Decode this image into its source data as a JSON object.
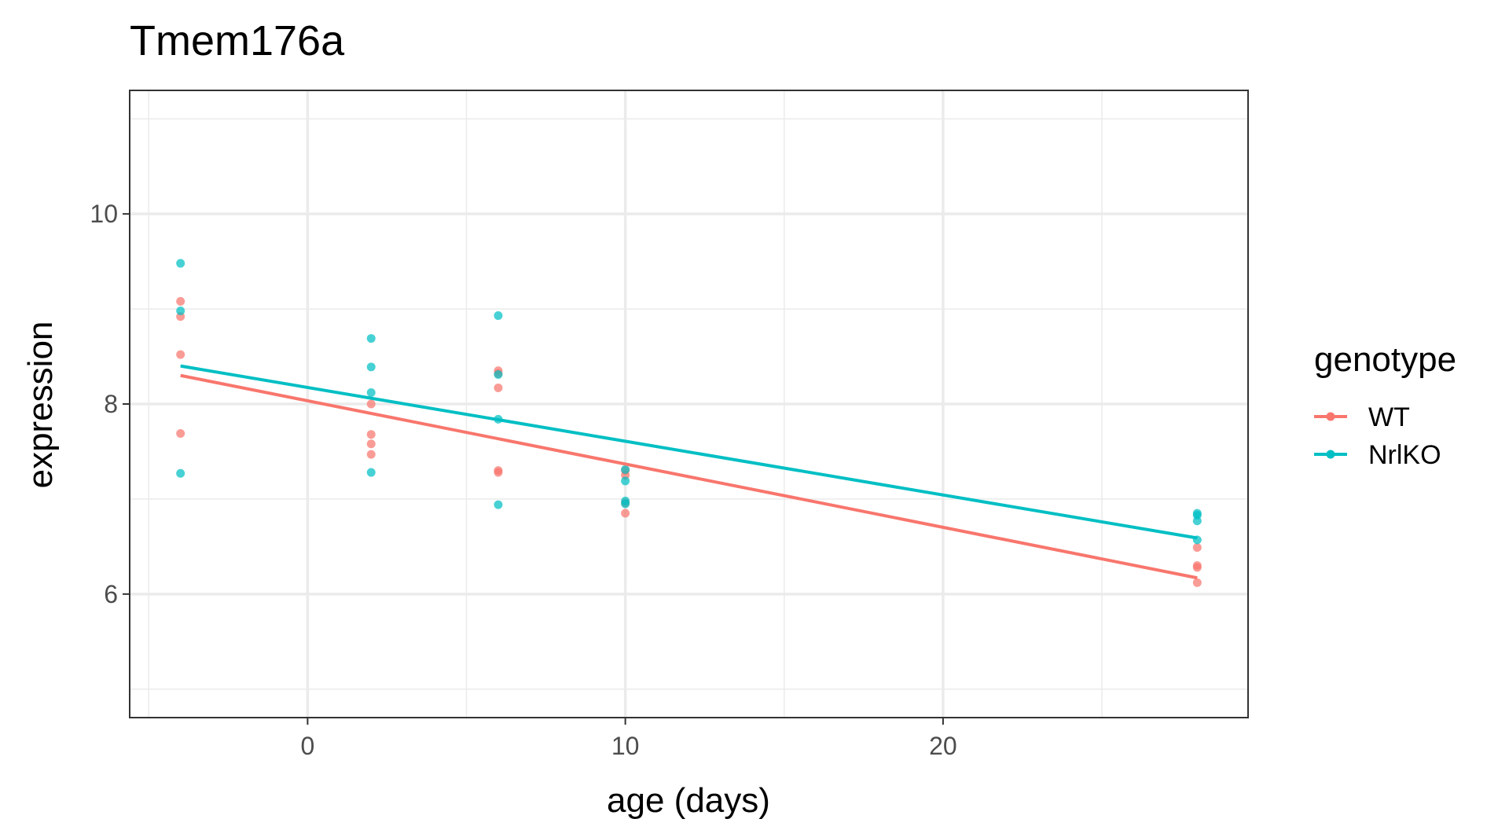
{
  "chart_data": {
    "type": "scatter",
    "title": "Tmem176a",
    "xlabel": "age (days)",
    "ylabel": "expression",
    "xlim": [
      -5.6,
      29.6
    ],
    "ylim": [
      4.7,
      11.3
    ],
    "x_ticks": [
      0,
      10,
      20
    ],
    "y_ticks": [
      6,
      8,
      10
    ],
    "x_minor": [
      -5,
      5,
      15,
      25
    ],
    "y_minor": [
      5,
      7,
      9,
      11
    ],
    "grid": true,
    "legend": {
      "title": "genotype",
      "position": "right"
    },
    "series": [
      {
        "name": "WT",
        "color": "#F8766D",
        "points": [
          [
            -4,
            9.08
          ],
          [
            -4,
            8.92
          ],
          [
            -4,
            8.52
          ],
          [
            -4,
            7.69
          ],
          [
            2,
            8.0
          ],
          [
            2,
            7.68
          ],
          [
            2,
            7.58
          ],
          [
            2,
            7.47
          ],
          [
            6,
            8.35
          ],
          [
            6,
            8.32
          ],
          [
            6,
            8.17
          ],
          [
            6,
            7.3
          ],
          [
            6,
            7.28
          ],
          [
            10,
            7.3
          ],
          [
            10,
            7.25
          ],
          [
            10,
            6.96
          ],
          [
            10,
            6.85
          ],
          [
            28,
            6.49
          ],
          [
            28,
            6.3
          ],
          [
            28,
            6.28
          ],
          [
            28,
            6.12
          ]
        ],
        "fit": [
          [
            -4,
            8.3
          ],
          [
            28,
            6.17
          ]
        ]
      },
      {
        "name": "NrlKO",
        "color": "#00BFC4",
        "points": [
          [
            -4,
            9.48
          ],
          [
            -4,
            8.98
          ],
          [
            -4,
            7.27
          ],
          [
            2,
            8.69
          ],
          [
            2,
            8.39
          ],
          [
            2,
            8.12
          ],
          [
            2,
            7.28
          ],
          [
            6,
            8.93
          ],
          [
            6,
            8.31
          ],
          [
            6,
            7.84
          ],
          [
            6,
            6.94
          ],
          [
            10,
            7.31
          ],
          [
            10,
            7.19
          ],
          [
            10,
            6.98
          ],
          [
            10,
            6.95
          ],
          [
            28,
            6.85
          ],
          [
            28,
            6.83
          ],
          [
            28,
            6.77
          ],
          [
            28,
            6.57
          ]
        ],
        "fit": [
          [
            -4,
            8.4
          ],
          [
            28,
            6.59
          ]
        ]
      }
    ]
  }
}
